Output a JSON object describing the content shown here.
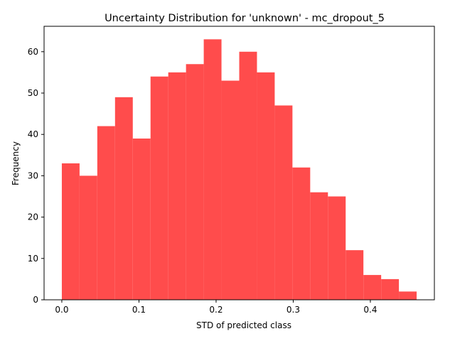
{
  "chart_data": {
    "type": "bar",
    "title": "Uncertainty Distribution for 'unknown' - mc_dropout_5",
    "xlabel": "STD of predicted class",
    "ylabel": "Frequency",
    "bin_edges": [
      0.0,
      0.023,
      0.046,
      0.069,
      0.092,
      0.115,
      0.138,
      0.161,
      0.184,
      0.207,
      0.23,
      0.253,
      0.276,
      0.299,
      0.322,
      0.345,
      0.368,
      0.391,
      0.414,
      0.437,
      0.46
    ],
    "values": [
      33,
      30,
      42,
      49,
      39,
      54,
      55,
      57,
      63,
      53,
      60,
      55,
      47,
      32,
      26,
      25,
      12,
      6,
      5,
      2
    ],
    "xlim": [
      -0.023,
      0.483
    ],
    "ylim": [
      0,
      66.15
    ],
    "xticks": [
      0.0,
      0.1,
      0.2,
      0.3,
      0.4
    ],
    "xtick_labels": [
      "0.0",
      "0.1",
      "0.2",
      "0.3",
      "0.4"
    ],
    "yticks": [
      0,
      10,
      20,
      30,
      40,
      50,
      60
    ],
    "ytick_labels": [
      "0",
      "10",
      "20",
      "30",
      "40",
      "50",
      "60"
    ],
    "bar_color": "#ff4c4c",
    "grid": false,
    "legend": "none"
  }
}
